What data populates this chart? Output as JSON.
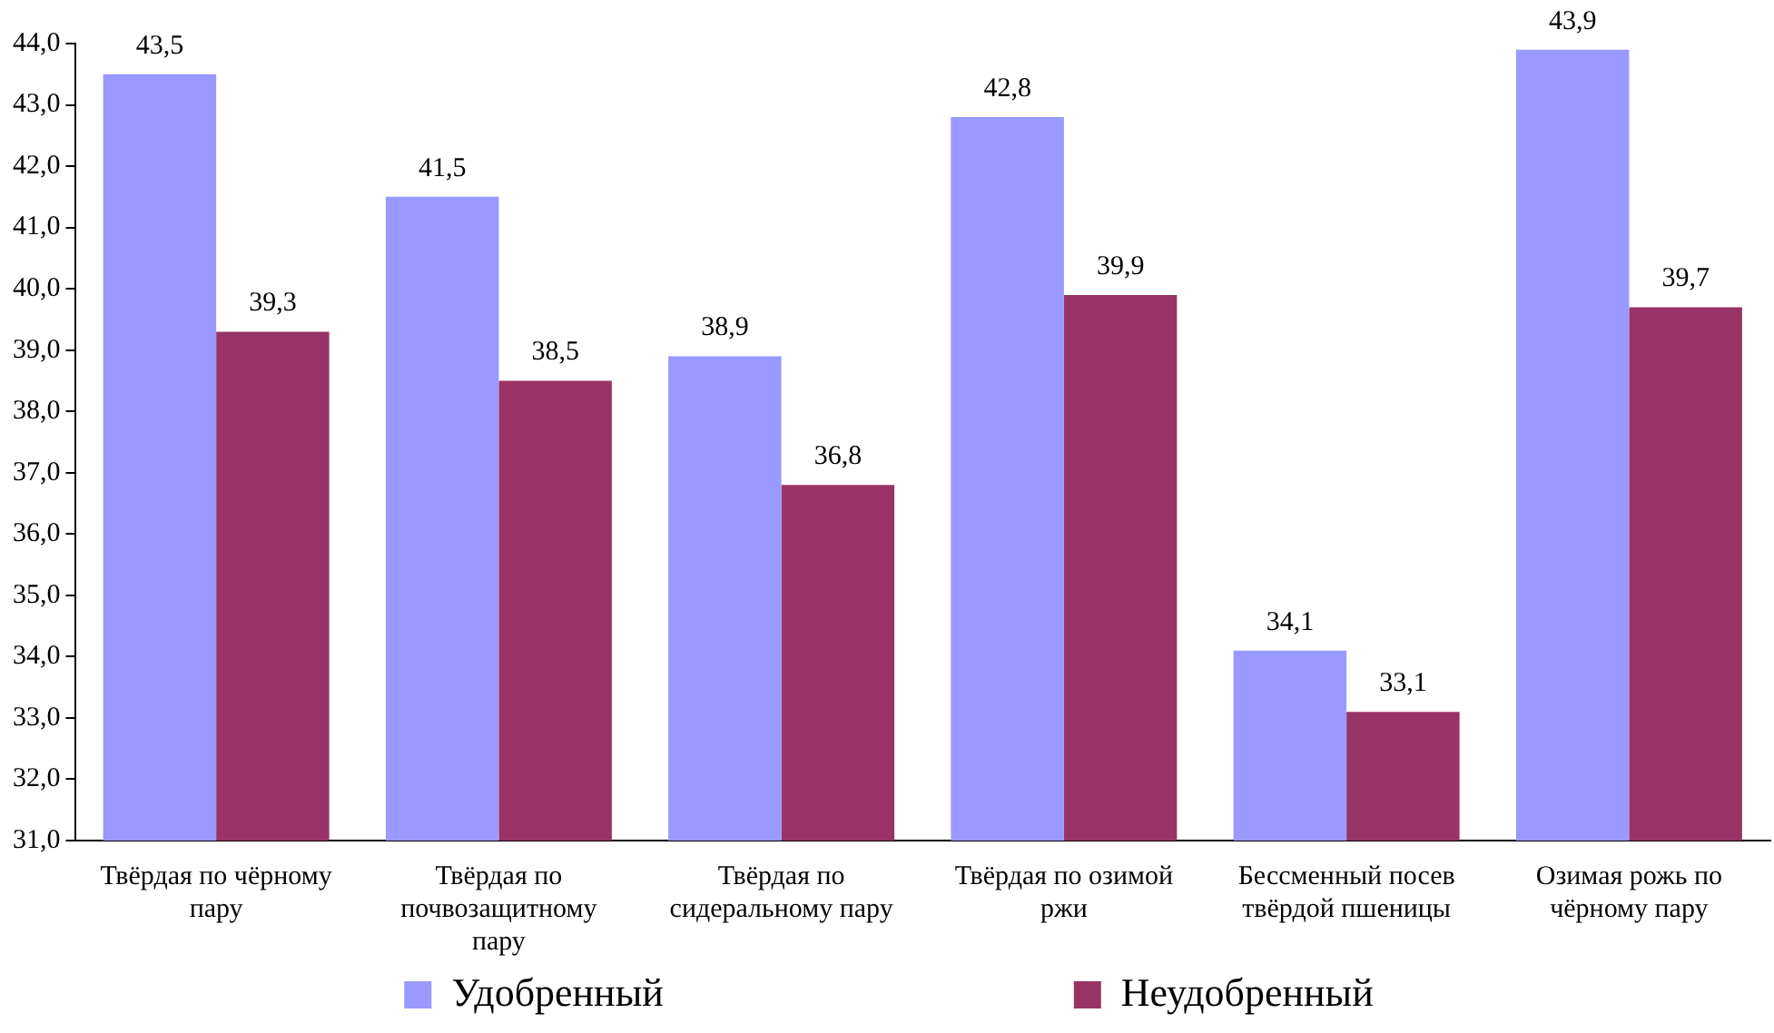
{
  "chart_data": {
    "type": "bar",
    "categories": [
      "Твёрдая по чёрному пару",
      "Твёрдая по почвозащитному пару",
      "Твёрдая по сидеральному пару",
      "Твёрдая по озимой ржи",
      "Бессменный посев твёрдой пшеницы",
      "Озимая рожь по чёрному пару"
    ],
    "series": [
      {
        "name": "Удобренный",
        "color": "#9999ff",
        "values": [
          43.5,
          41.5,
          38.9,
          42.8,
          34.1,
          43.9
        ],
        "value_labels": [
          "43,5",
          "41,5",
          "38,9",
          "42,8",
          "34,1",
          "43,9"
        ]
      },
      {
        "name": "Неудобренный",
        "color": "#993366",
        "values": [
          39.3,
          38.5,
          36.8,
          39.9,
          33.1,
          39.7
        ],
        "value_labels": [
          "39,3",
          "38,5",
          "36,8",
          "39,9",
          "33,1",
          "39,7"
        ]
      }
    ],
    "ylim": [
      31,
      44
    ],
    "yticks": [
      {
        "value": 31,
        "label": "31,0"
      },
      {
        "value": 32,
        "label": "32,0"
      },
      {
        "value": 33,
        "label": "33,0"
      },
      {
        "value": 34,
        "label": "34,0"
      },
      {
        "value": 35,
        "label": "35,0"
      },
      {
        "value": 36,
        "label": "36,0"
      },
      {
        "value": 37,
        "label": "37,0"
      },
      {
        "value": 38,
        "label": "38,0"
      },
      {
        "value": 39,
        "label": "39,0"
      },
      {
        "value": 40,
        "label": "40,0"
      },
      {
        "value": 41,
        "label": "41,0"
      },
      {
        "value": 42,
        "label": "42,0"
      },
      {
        "value": 43,
        "label": "43,0"
      },
      {
        "value": 44,
        "label": "44,0"
      }
    ],
    "grid": false,
    "legend": "bottom"
  }
}
